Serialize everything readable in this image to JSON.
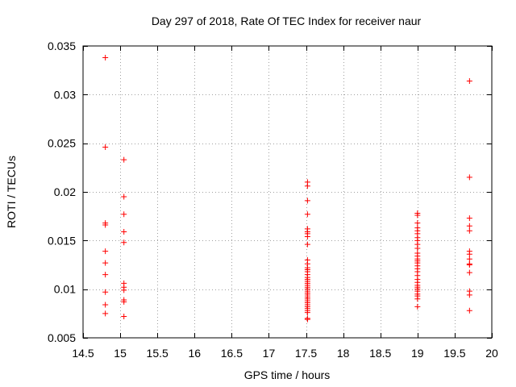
{
  "chart_data": {
    "type": "scatter",
    "title": "Day 297 of 2018, Rate Of TEC Index for receiver naur",
    "xlabel": "GPS time / hours",
    "ylabel": "ROTI / TECUs",
    "xlim": [
      14.5,
      20
    ],
    "ylim": [
      0.005,
      0.035
    ],
    "grid": true,
    "marker_color": "#ff0000",
    "marker": "plus",
    "x_ticks": [
      {
        "value": 14.5,
        "label": "14.5"
      },
      {
        "value": 15,
        "label": "15"
      },
      {
        "value": 15.5,
        "label": "15.5"
      },
      {
        "value": 16,
        "label": "16"
      },
      {
        "value": 16.5,
        "label": "16.5"
      },
      {
        "value": 17,
        "label": "17"
      },
      {
        "value": 17.5,
        "label": "17.5"
      },
      {
        "value": 18,
        "label": "18"
      },
      {
        "value": 18.5,
        "label": "18.5"
      },
      {
        "value": 19,
        "label": "19"
      },
      {
        "value": 19.5,
        "label": "19.5"
      },
      {
        "value": 20,
        "label": "20"
      }
    ],
    "y_ticks": [
      {
        "value": 0.005,
        "label": "0.005"
      },
      {
        "value": 0.01,
        "label": "0.01"
      },
      {
        "value": 0.015,
        "label": "0.015"
      },
      {
        "value": 0.02,
        "label": "0.02"
      },
      {
        "value": 0.025,
        "label": "0.025"
      },
      {
        "value": 0.03,
        "label": "0.03"
      },
      {
        "value": 0.035,
        "label": "0.035"
      }
    ],
    "series": [
      {
        "name": "ROTI",
        "points": [
          [
            14.8,
            0.0338
          ],
          [
            14.8,
            0.0246
          ],
          [
            14.8,
            0.0168
          ],
          [
            14.8,
            0.0166
          ],
          [
            14.8,
            0.0139
          ],
          [
            14.8,
            0.0127
          ],
          [
            14.8,
            0.0115
          ],
          [
            14.8,
            0.0097
          ],
          [
            14.8,
            0.0084
          ],
          [
            14.8,
            0.0075
          ],
          [
            15.05,
            0.0233
          ],
          [
            15.05,
            0.0195
          ],
          [
            15.05,
            0.0177
          ],
          [
            15.05,
            0.0159
          ],
          [
            15.05,
            0.0148
          ],
          [
            15.05,
            0.0106
          ],
          [
            15.05,
            0.0102
          ],
          [
            15.05,
            0.0099
          ],
          [
            15.05,
            0.0089
          ],
          [
            15.05,
            0.0087
          ],
          [
            15.05,
            0.0072
          ],
          [
            17.52,
            0.021
          ],
          [
            17.52,
            0.0206
          ],
          [
            17.52,
            0.0191
          ],
          [
            17.52,
            0.0177
          ],
          [
            17.52,
            0.0162
          ],
          [
            17.52,
            0.0159
          ],
          [
            17.52,
            0.0157
          ],
          [
            17.52,
            0.0154
          ],
          [
            17.52,
            0.0146
          ],
          [
            17.52,
            0.013
          ],
          [
            17.52,
            0.0126
          ],
          [
            17.52,
            0.0122
          ],
          [
            17.52,
            0.012
          ],
          [
            17.52,
            0.0118
          ],
          [
            17.52,
            0.0115
          ],
          [
            17.52,
            0.0112
          ],
          [
            17.52,
            0.011
          ],
          [
            17.52,
            0.0108
          ],
          [
            17.52,
            0.0106
          ],
          [
            17.52,
            0.0104
          ],
          [
            17.52,
            0.0102
          ],
          [
            17.52,
            0.01
          ],
          [
            17.52,
            0.0098
          ],
          [
            17.52,
            0.0096
          ],
          [
            17.52,
            0.0094
          ],
          [
            17.52,
            0.0092
          ],
          [
            17.52,
            0.009
          ],
          [
            17.52,
            0.0088
          ],
          [
            17.52,
            0.0086
          ],
          [
            17.52,
            0.0084
          ],
          [
            17.52,
            0.0082
          ],
          [
            17.52,
            0.008
          ],
          [
            17.52,
            0.0078
          ],
          [
            17.52,
            0.0076
          ],
          [
            17.52,
            0.007
          ],
          [
            17.52,
            0.0069
          ],
          [
            19.0,
            0.0178
          ],
          [
            19.0,
            0.0176
          ],
          [
            19.0,
            0.0168
          ],
          [
            19.0,
            0.0163
          ],
          [
            19.0,
            0.016
          ],
          [
            19.0,
            0.0157
          ],
          [
            19.0,
            0.0153
          ],
          [
            19.0,
            0.015
          ],
          [
            19.0,
            0.0146
          ],
          [
            19.0,
            0.0142
          ],
          [
            19.0,
            0.0137
          ],
          [
            19.0,
            0.0134
          ],
          [
            19.0,
            0.0131
          ],
          [
            19.0,
            0.0129
          ],
          [
            19.0,
            0.0127
          ],
          [
            19.0,
            0.0124
          ],
          [
            19.0,
            0.0121
          ],
          [
            19.0,
            0.0118
          ],
          [
            19.0,
            0.0114
          ],
          [
            19.0,
            0.011
          ],
          [
            19.0,
            0.0107
          ],
          [
            19.0,
            0.0104
          ],
          [
            19.0,
            0.0102
          ],
          [
            19.0,
            0.01
          ],
          [
            19.0,
            0.0098
          ],
          [
            19.0,
            0.0095
          ],
          [
            19.0,
            0.0093
          ],
          [
            19.0,
            0.009
          ],
          [
            19.0,
            0.0082
          ],
          [
            19.7,
            0.0314
          ],
          [
            19.7,
            0.0215
          ],
          [
            19.7,
            0.0173
          ],
          [
            19.7,
            0.0165
          ],
          [
            19.7,
            0.016
          ],
          [
            19.7,
            0.0139
          ],
          [
            19.7,
            0.0136
          ],
          [
            19.7,
            0.0131
          ],
          [
            19.7,
            0.0126
          ],
          [
            19.7,
            0.0125
          ],
          [
            19.7,
            0.0117
          ],
          [
            19.7,
            0.0098
          ],
          [
            19.7,
            0.0094
          ],
          [
            19.7,
            0.0078
          ]
        ]
      }
    ]
  }
}
